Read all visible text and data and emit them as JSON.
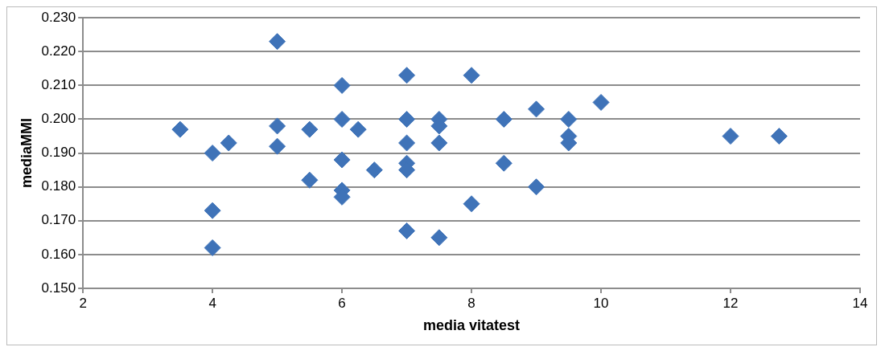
{
  "chart_data": {
    "type": "scatter",
    "xlabel": "media vitatest",
    "ylabel": "mediaMMI",
    "x": [
      3.5,
      4,
      4,
      4,
      4.25,
      5,
      5,
      5,
      5.5,
      5.5,
      6,
      6,
      6,
      6,
      6,
      6.25,
      6.5,
      7,
      7,
      7,
      7,
      7,
      7,
      7.5,
      7.5,
      7.5,
      7.5,
      8,
      8,
      8.5,
      8.5,
      9,
      9,
      9.5,
      9.5,
      9.5,
      10,
      12,
      12.75
    ],
    "values": [
      0.197,
      0.19,
      0.173,
      0.162,
      0.193,
      0.223,
      0.198,
      0.192,
      0.197,
      0.182,
      0.21,
      0.2,
      0.188,
      0.179,
      0.177,
      0.197,
      0.185,
      0.213,
      0.2,
      0.193,
      0.187,
      0.185,
      0.167,
      0.2,
      0.198,
      0.193,
      0.165,
      0.213,
      0.175,
      0.2,
      0.187,
      0.203,
      0.18,
      0.2,
      0.195,
      0.193,
      0.205,
      0.195,
      0.195
    ],
    "color": "#3f73b8",
    "marker": "diamond",
    "xlim": [
      2,
      14
    ],
    "xticks": [
      2,
      4,
      6,
      8,
      10,
      12,
      14
    ],
    "ylim": [
      0.15,
      0.23
    ],
    "yticks": [
      {
        "value": 0.15,
        "label": "0.150"
      },
      {
        "value": 0.16,
        "label": "0.160"
      },
      {
        "value": 0.17,
        "label": "0.170"
      },
      {
        "value": 0.18,
        "label": "0.180"
      },
      {
        "value": 0.19,
        "label": "0.190"
      },
      {
        "value": 0.2,
        "label": "0.200"
      },
      {
        "value": 0.21,
        "label": "0.210"
      },
      {
        "value": 0.22,
        "label": "0.220"
      },
      {
        "value": 0.23,
        "label": "0.230"
      }
    ],
    "grid": "y",
    "legend": false
  }
}
